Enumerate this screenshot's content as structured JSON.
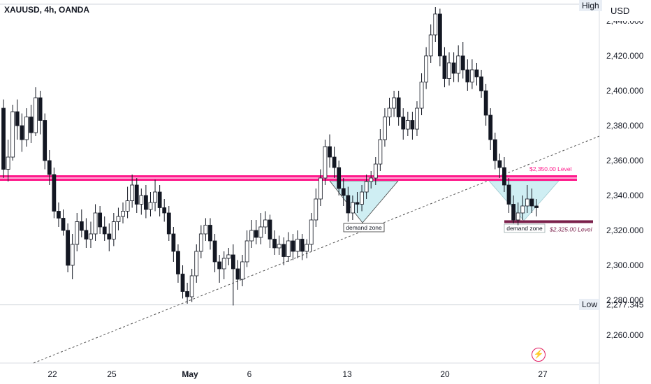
{
  "header": {
    "symbol_line": "XAUUSD, 4h, OANDA",
    "currency": "USD"
  },
  "axis_labels": {
    "high": "High",
    "low": "Low"
  },
  "colors": {
    "bull": "#ffffff",
    "bear": "#131722",
    "resistance": "#ff1a8c",
    "support": "#7a1f4a",
    "zone_fill": "#cfeef3",
    "trendline": "#555555"
  },
  "chart_data": {
    "type": "candlestick",
    "symbol": "XAUUSD",
    "timeframe": "4h",
    "source": "OANDA",
    "y_range": [
      2245,
      2448
    ],
    "y_ticks": [
      "2,260.000",
      "2,280.000",
      "2,300.000",
      "2,320.000",
      "2,340.000",
      "2,360.000",
      "2,380.000",
      "2,400.000",
      "2,420.000",
      "2,440.000"
    ],
    "x_ticks": [
      "22",
      "25",
      "May",
      "6",
      "13",
      "20",
      "27"
    ],
    "price_marks": {
      "low": "2,277.345"
    },
    "levels": [
      {
        "label": "$2,350.00 Level",
        "price": 2350,
        "role": "resistance"
      },
      {
        "label": "$2,325.00 Level",
        "price": 2325,
        "role": "support"
      }
    ],
    "zones": [
      {
        "label": "demand zone",
        "date": "13"
      },
      {
        "label": "demand zone",
        "date": "24"
      }
    ],
    "candles": [
      [
        2390,
        2355,
        2395,
        2350
      ],
      [
        2355,
        2362,
        2372,
        2348
      ],
      [
        2362,
        2388,
        2392,
        2360
      ],
      [
        2388,
        2380,
        2395,
        2372
      ],
      [
        2380,
        2372,
        2387,
        2365
      ],
      [
        2372,
        2385,
        2390,
        2368
      ],
      [
        2385,
        2376,
        2392,
        2370
      ],
      [
        2376,
        2396,
        2402,
        2374
      ],
      [
        2396,
        2383,
        2400,
        2375
      ],
      [
        2383,
        2360,
        2387,
        2355
      ],
      [
        2360,
        2352,
        2366,
        2346
      ],
      [
        2352,
        2331,
        2356,
        2327
      ],
      [
        2331,
        2327,
        2336,
        2322
      ],
      [
        2327,
        2320,
        2332,
        2317
      ],
      [
        2320,
        2300,
        2324,
        2296
      ],
      [
        2300,
        2312,
        2318,
        2292
      ],
      [
        2312,
        2325,
        2330,
        2308
      ],
      [
        2325,
        2320,
        2332,
        2316
      ],
      [
        2320,
        2315,
        2327,
        2310
      ],
      [
        2315,
        2318,
        2325,
        2310
      ],
      [
        2318,
        2330,
        2335,
        2314
      ],
      [
        2330,
        2322,
        2334,
        2318
      ],
      [
        2322,
        2318,
        2328,
        2314
      ],
      [
        2318,
        2315,
        2324,
        2308
      ],
      [
        2315,
        2325,
        2330,
        2311
      ],
      [
        2325,
        2328,
        2333,
        2320
      ],
      [
        2328,
        2331,
        2336,
        2324
      ],
      [
        2331,
        2337,
        2345,
        2327
      ],
      [
        2337,
        2346,
        2352,
        2333
      ],
      [
        2346,
        2335,
        2350,
        2330
      ],
      [
        2335,
        2340,
        2344,
        2329
      ],
      [
        2340,
        2332,
        2346,
        2327
      ],
      [
        2332,
        2336,
        2342,
        2328
      ],
      [
        2336,
        2342,
        2349,
        2331
      ],
      [
        2342,
        2333,
        2346,
        2328
      ],
      [
        2333,
        2330,
        2338,
        2325
      ],
      [
        2330,
        2318,
        2334,
        2314
      ],
      [
        2318,
        2308,
        2322,
        2302
      ],
      [
        2308,
        2295,
        2312,
        2290
      ],
      [
        2295,
        2285,
        2300,
        2281
      ],
      [
        2285,
        2282,
        2290,
        2278
      ],
      [
        2282,
        2294,
        2298,
        2279
      ],
      [
        2294,
        2308,
        2312,
        2290
      ],
      [
        2308,
        2318,
        2323,
        2304
      ],
      [
        2318,
        2323,
        2327,
        2314
      ],
      [
        2323,
        2314,
        2327,
        2309
      ],
      [
        2314,
        2302,
        2318,
        2296
      ],
      [
        2302,
        2298,
        2306,
        2290
      ],
      [
        2298,
        2304,
        2308,
        2292
      ],
      [
        2304,
        2306,
        2310,
        2300
      ],
      [
        2306,
        2298,
        2312,
        2277
      ],
      [
        2298,
        2292,
        2303,
        2286
      ],
      [
        2292,
        2302,
        2306,
        2288
      ],
      [
        2302,
        2314,
        2320,
        2299
      ],
      [
        2314,
        2320,
        2326,
        2310
      ],
      [
        2320,
        2316,
        2326,
        2312
      ],
      [
        2316,
        2322,
        2330,
        2312
      ],
      [
        2322,
        2326,
        2331,
        2318
      ],
      [
        2326,
        2315,
        2329,
        2310
      ],
      [
        2315,
        2310,
        2320,
        2306
      ],
      [
        2310,
        2312,
        2317,
        2306
      ],
      [
        2312,
        2305,
        2316,
        2300
      ],
      [
        2305,
        2314,
        2319,
        2302
      ],
      [
        2314,
        2308,
        2318,
        2303
      ],
      [
        2308,
        2315,
        2320,
        2304
      ],
      [
        2315,
        2308,
        2318,
        2303
      ],
      [
        2308,
        2312,
        2315,
        2304
      ],
      [
        2312,
        2326,
        2330,
        2308
      ],
      [
        2326,
        2338,
        2344,
        2322
      ],
      [
        2338,
        2350,
        2355,
        2334
      ],
      [
        2350,
        2368,
        2372,
        2346
      ],
      [
        2368,
        2362,
        2375,
        2356
      ],
      [
        2362,
        2356,
        2368,
        2350
      ],
      [
        2356,
        2344,
        2360,
        2340
      ],
      [
        2344,
        2340,
        2350,
        2334
      ],
      [
        2340,
        2330,
        2345,
        2325
      ],
      [
        2330,
        2336,
        2340,
        2326
      ],
      [
        2336,
        2335,
        2342,
        2330
      ],
      [
        2335,
        2342,
        2346,
        2331
      ],
      [
        2342,
        2348,
        2352,
        2338
      ],
      [
        2348,
        2350,
        2354,
        2344
      ],
      [
        2350,
        2358,
        2362,
        2346
      ],
      [
        2358,
        2372,
        2378,
        2354
      ],
      [
        2372,
        2385,
        2390,
        2368
      ],
      [
        2385,
        2390,
        2396,
        2380
      ],
      [
        2390,
        2396,
        2400,
        2385
      ],
      [
        2396,
        2385,
        2400,
        2380
      ],
      [
        2385,
        2378,
        2390,
        2372
      ],
      [
        2378,
        2383,
        2388,
        2374
      ],
      [
        2383,
        2378,
        2388,
        2372
      ],
      [
        2378,
        2390,
        2394,
        2374
      ],
      [
        2390,
        2405,
        2410,
        2386
      ],
      [
        2405,
        2420,
        2425,
        2401
      ],
      [
        2420,
        2432,
        2438,
        2416
      ],
      [
        2432,
        2444,
        2448,
        2428
      ],
      [
        2444,
        2420,
        2447,
        2414
      ],
      [
        2420,
        2407,
        2425,
        2402
      ],
      [
        2407,
        2416,
        2422,
        2403
      ],
      [
        2416,
        2410,
        2422,
        2405
      ],
      [
        2410,
        2420,
        2426,
        2405
      ],
      [
        2420,
        2412,
        2428,
        2407
      ],
      [
        2412,
        2405,
        2418,
        2400
      ],
      [
        2405,
        2412,
        2418,
        2401
      ],
      [
        2412,
        2408,
        2416,
        2403
      ],
      [
        2408,
        2400,
        2412,
        2396
      ],
      [
        2400,
        2386,
        2404,
        2380
      ],
      [
        2386,
        2372,
        2390,
        2366
      ],
      [
        2372,
        2360,
        2376,
        2355
      ],
      [
        2360,
        2356,
        2364,
        2350
      ],
      [
        2356,
        2346,
        2362,
        2342
      ],
      [
        2346,
        2335,
        2350,
        2330
      ],
      [
        2335,
        2326,
        2340,
        2324
      ],
      [
        2326,
        2330,
        2336,
        2323
      ],
      [
        2330,
        2334,
        2340,
        2326
      ],
      [
        2334,
        2338,
        2346,
        2330
      ],
      [
        2338,
        2334,
        2344,
        2330
      ],
      [
        2334,
        2333,
        2338,
        2328
      ]
    ]
  }
}
